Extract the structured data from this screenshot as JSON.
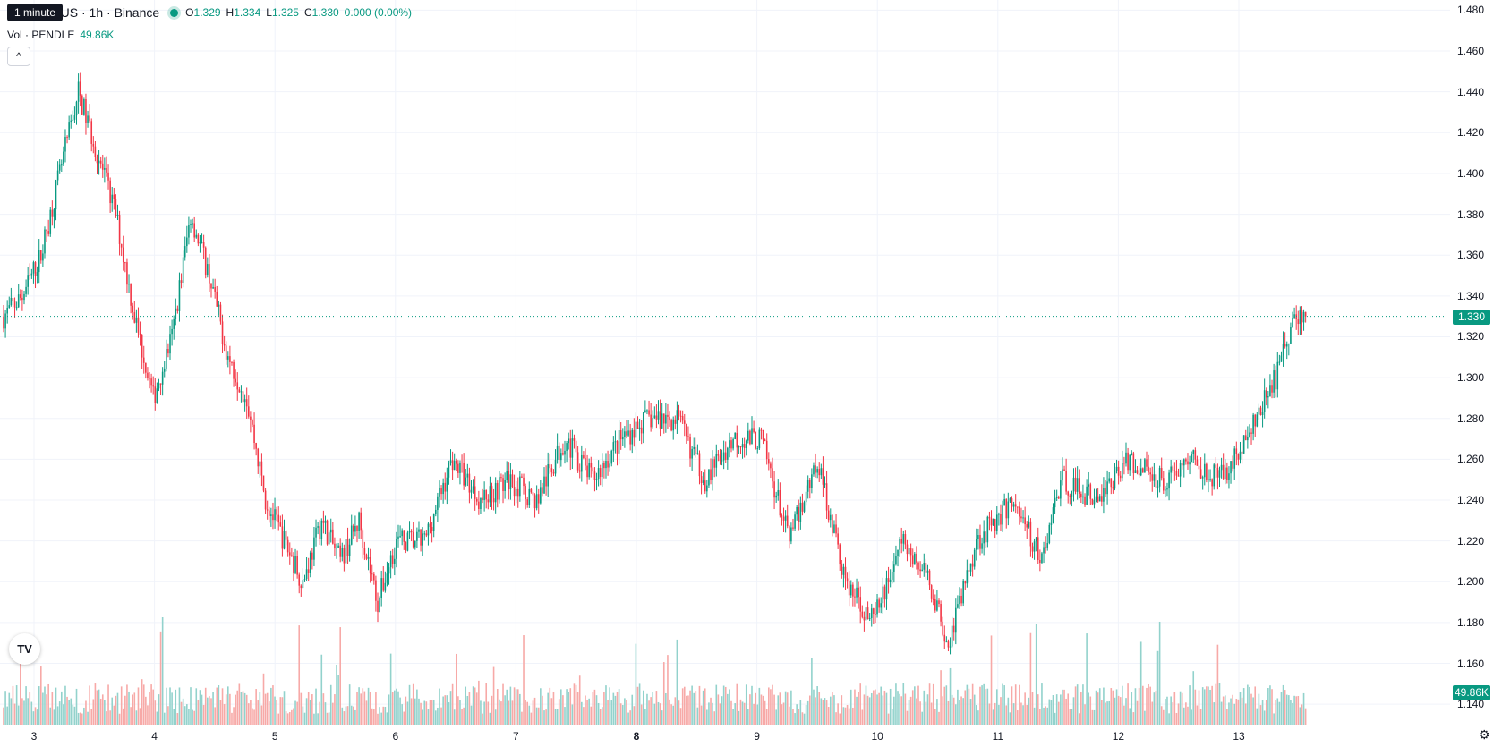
{
  "tooltip": {
    "text": "1 minute"
  },
  "legend": {
    "symbol": "E / TetherUS · 1h · Binance",
    "open_label": "O",
    "open": "1.329",
    "high_label": "H",
    "high": "1.334",
    "low_label": "L",
    "low": "1.325",
    "close_label": "C",
    "close": "1.330",
    "change": "0.000 (0.00%)"
  },
  "volume_legend": {
    "label": "Vol · PENDLE",
    "value": "49.86K"
  },
  "collapse_button": {
    "icon": "chevron-up-icon",
    "glyph": "^"
  },
  "logo": {
    "text": "TV"
  },
  "price_scale": {
    "labels": [
      "1.480",
      "1.460",
      "1.440",
      "1.420",
      "1.400",
      "1.380",
      "1.360",
      "1.340",
      "1.320",
      "1.300",
      "1.280",
      "1.260",
      "1.240",
      "1.220",
      "1.200",
      "1.180",
      "1.160",
      "1.140"
    ],
    "current_price": "1.330",
    "current_volume": "49.86K"
  },
  "time_scale": {
    "labels": [
      "3",
      "4",
      "5",
      "6",
      "7",
      "8",
      "9",
      "10",
      "11",
      "12",
      "13"
    ],
    "bold_label": "8"
  },
  "settings": {
    "icon": "gear-icon"
  },
  "colors": {
    "up": "#089981",
    "down": "#f23645",
    "up_volume": "#92d2cc",
    "down_volume": "#f7a9a7",
    "grid": "#f0f3fa"
  },
  "chart_data": {
    "type": "candlestick",
    "symbol": "PENDLE/USDT",
    "interval": "1h",
    "ylim": [
      1.13,
      1.485
    ],
    "last_price": 1.33,
    "anchors": [
      [
        0,
        1.33
      ],
      [
        10,
        1.34
      ],
      [
        20,
        1.36
      ],
      [
        40,
        1.44
      ],
      [
        50,
        1.41
      ],
      [
        60,
        1.38
      ],
      [
        70,
        1.33
      ],
      [
        80,
        1.29
      ],
      [
        90,
        1.32
      ],
      [
        100,
        1.38
      ],
      [
        110,
        1.35
      ],
      [
        120,
        1.31
      ],
      [
        130,
        1.29
      ],
      [
        140,
        1.24
      ],
      [
        150,
        1.22
      ],
      [
        160,
        1.2
      ],
      [
        170,
        1.23
      ],
      [
        180,
        1.21
      ],
      [
        190,
        1.23
      ],
      [
        200,
        1.19
      ],
      [
        210,
        1.22
      ],
      [
        225,
        1.22
      ],
      [
        240,
        1.26
      ],
      [
        255,
        1.24
      ],
      [
        270,
        1.25
      ],
      [
        285,
        1.24
      ],
      [
        300,
        1.27
      ],
      [
        315,
        1.25
      ],
      [
        330,
        1.27
      ],
      [
        345,
        1.28
      ],
      [
        360,
        1.28
      ],
      [
        375,
        1.25
      ],
      [
        390,
        1.27
      ],
      [
        405,
        1.27
      ],
      [
        420,
        1.22
      ],
      [
        435,
        1.26
      ],
      [
        450,
        1.2
      ],
      [
        465,
        1.18
      ],
      [
        480,
        1.22
      ],
      [
        495,
        1.2
      ],
      [
        505,
        1.17
      ],
      [
        520,
        1.22
      ],
      [
        540,
        1.24
      ],
      [
        555,
        1.21
      ],
      [
        565,
        1.25
      ],
      [
        585,
        1.24
      ],
      [
        600,
        1.26
      ],
      [
        620,
        1.25
      ],
      [
        635,
        1.26
      ],
      [
        650,
        1.25
      ],
      [
        665,
        1.27
      ],
      [
        680,
        1.3
      ],
      [
        690,
        1.33
      ],
      [
        696,
        1.33
      ]
    ]
  }
}
